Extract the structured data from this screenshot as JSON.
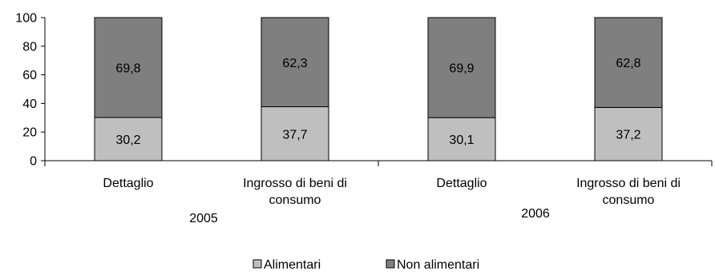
{
  "chart_data": {
    "type": "bar",
    "stacked": true,
    "groups": [
      "2005",
      "2006"
    ],
    "categories": [
      {
        "group": "2005",
        "label_lines": [
          "Dettaglio"
        ]
      },
      {
        "group": "2005",
        "label_lines": [
          "Ingrosso di beni di",
          "consumo"
        ]
      },
      {
        "group": "2006",
        "label_lines": [
          "Dettaglio"
        ]
      },
      {
        "group": "2006",
        "label_lines": [
          "Ingrosso di beni di",
          "consumo"
        ]
      }
    ],
    "series": [
      {
        "name": "Alimentari",
        "color": "#bfbfbf",
        "values": [
          30.2,
          37.7,
          30.1,
          37.2
        ],
        "labels": [
          "30,2",
          "37,7",
          "30,1",
          "37,2"
        ]
      },
      {
        "name": "Non alimentari",
        "color": "#7f7f7f",
        "values": [
          69.8,
          62.3,
          69.9,
          62.8
        ],
        "labels": [
          "69,8",
          "62,3",
          "69,9",
          "62,8"
        ]
      }
    ],
    "y_ticks": [
      "0",
      "20",
      "40",
      "60",
      "80",
      "100"
    ],
    "ylim": [
      0,
      100
    ],
    "grid": false,
    "legend_position": "bottom"
  }
}
